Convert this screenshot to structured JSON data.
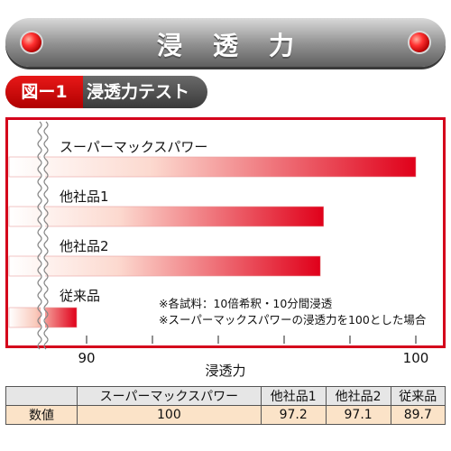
{
  "header": {
    "title": "浸透力"
  },
  "figure": {
    "number": "図ー1",
    "title": "浸透力テスト"
  },
  "notes": [
    "※各試料：10倍希釈・10分間浸透",
    "※スーパーマックスパワーの浸透力を100とした場合"
  ],
  "chart_data": {
    "type": "bar",
    "orientation": "horizontal",
    "categories": [
      "スーパーマックスパワー",
      "他社品1",
      "他社品2",
      "従来品"
    ],
    "values": [
      100,
      97.2,
      97.1,
      89.7
    ],
    "xlabel": "浸透力",
    "xlim": [
      90,
      100
    ],
    "xticks": [
      "90",
      "100"
    ],
    "axis_break": true,
    "colors": {
      "bar_start": "#ffffff",
      "bar_end": "#e0001a",
      "frame": "#d4001b"
    }
  },
  "table": {
    "corner": "",
    "headers": [
      "スーパーマックスパワー",
      "他社品1",
      "他社品2",
      "従来品"
    ],
    "row_label": "数値",
    "values": [
      "100",
      "97.2",
      "97.1",
      "89.7"
    ]
  }
}
